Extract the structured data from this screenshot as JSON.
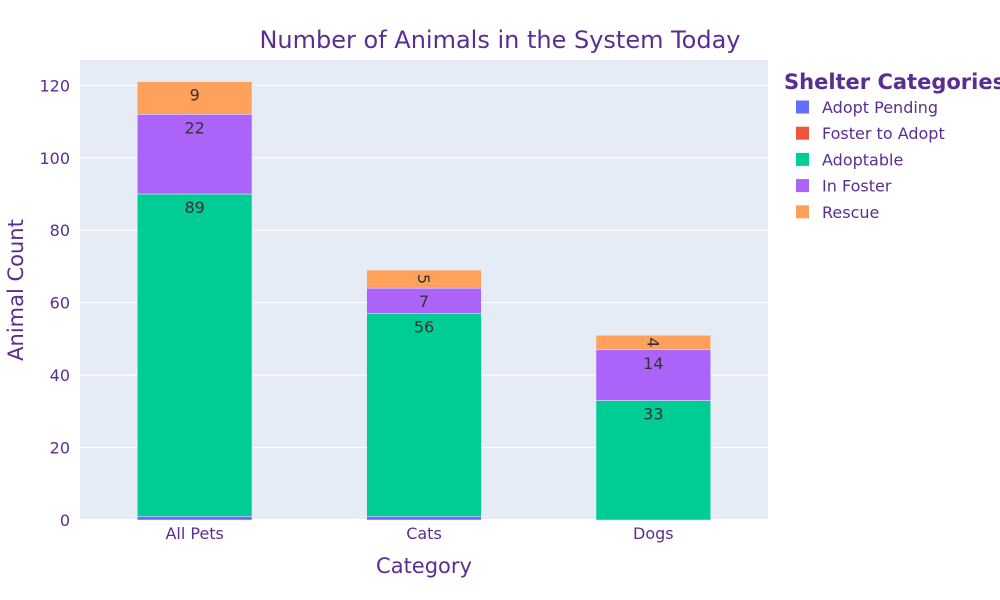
{
  "chart_data": {
    "type": "bar",
    "barmode": "stack",
    "title": "Number of Animals in the System Today",
    "xlabel": "Category",
    "ylabel": "Animal Count",
    "categories": [
      "All Pets",
      "Cats",
      "Dogs"
    ],
    "ylim": [
      0,
      127
    ],
    "yticks": [
      0,
      20,
      40,
      60,
      80,
      100,
      120
    ],
    "legend_title": "Shelter Categories",
    "legend_position": "right",
    "grid": true,
    "series": [
      {
        "name": "Adopt Pending",
        "color": "#636efa",
        "values": [
          1,
          1,
          0
        ],
        "labels": [
          "",
          "",
          ""
        ]
      },
      {
        "name": "Foster to Adopt",
        "color": "#ef553b",
        "values": [
          0,
          0,
          0
        ],
        "labels": [
          "",
          "",
          ""
        ]
      },
      {
        "name": "Adoptable",
        "color": "#00cc96",
        "values": [
          89,
          56,
          33
        ],
        "labels": [
          "89",
          "56",
          "33"
        ]
      },
      {
        "name": "In Foster",
        "color": "#ab63fa",
        "values": [
          22,
          7,
          14
        ],
        "labels": [
          "22",
          "7",
          "14"
        ]
      },
      {
        "name": "Rescue",
        "color": "#ffa15a",
        "values": [
          9,
          5,
          4
        ],
        "labels": [
          "9",
          "5",
          "4"
        ]
      }
    ]
  }
}
